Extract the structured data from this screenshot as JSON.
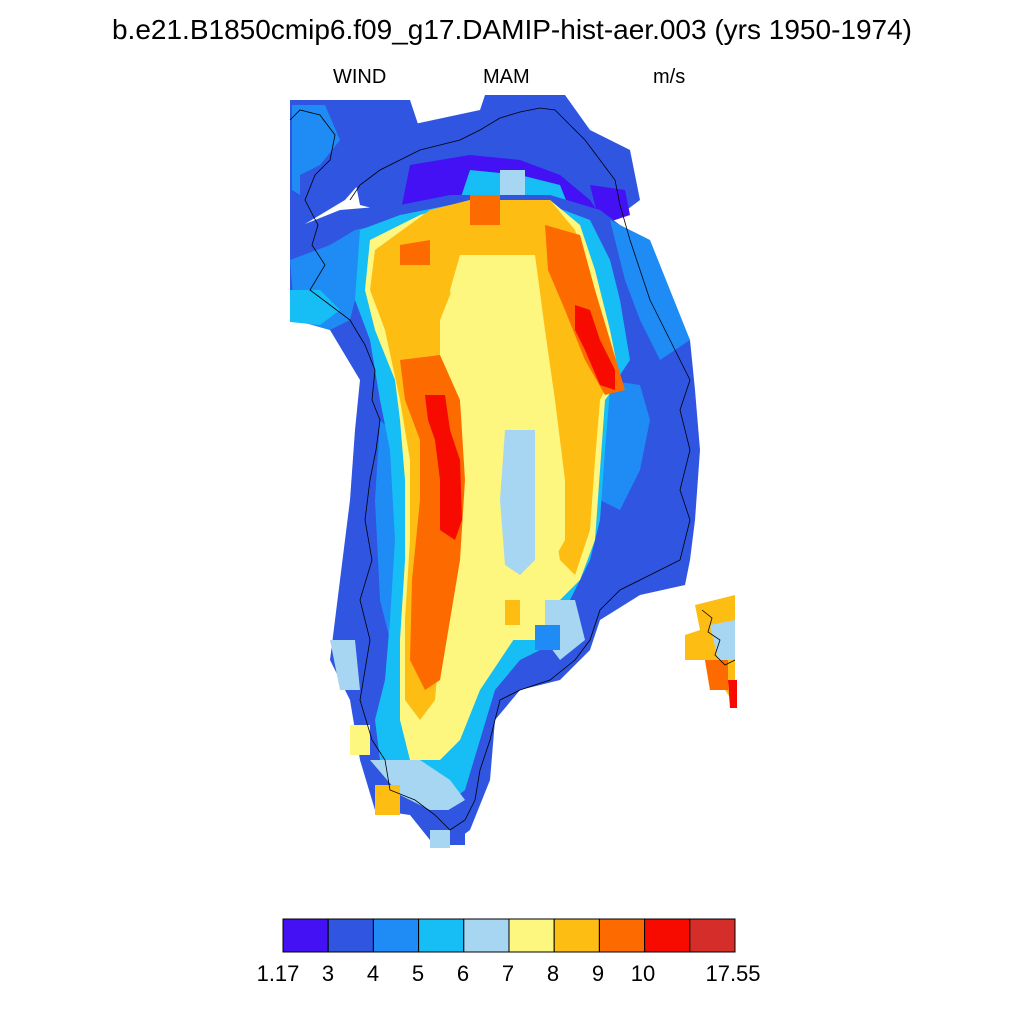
{
  "title": "b.e21.B1850cmip6.f09_g17.DAMIP-hist-aer.003 (yrs 1950-1974)",
  "left_string": "WIND",
  "center_string": "MAM",
  "right_string": "m/s",
  "colorbar": {
    "colors": [
      "#4410f4",
      "#2f55e1",
      "#1e8cf4",
      "#17bef5",
      "#a6d6f2",
      "#fdf67f",
      "#fdbd13",
      "#fd6b00",
      "#f70a00",
      "#d42d2a"
    ],
    "labels": [
      "1.17",
      "3",
      "4",
      "5",
      "6",
      "7",
      "8",
      "9",
      "10",
      "17.55"
    ],
    "levels": [
      1.17,
      3,
      4,
      5,
      6,
      7,
      8,
      9,
      10,
      17.55
    ]
  }
}
